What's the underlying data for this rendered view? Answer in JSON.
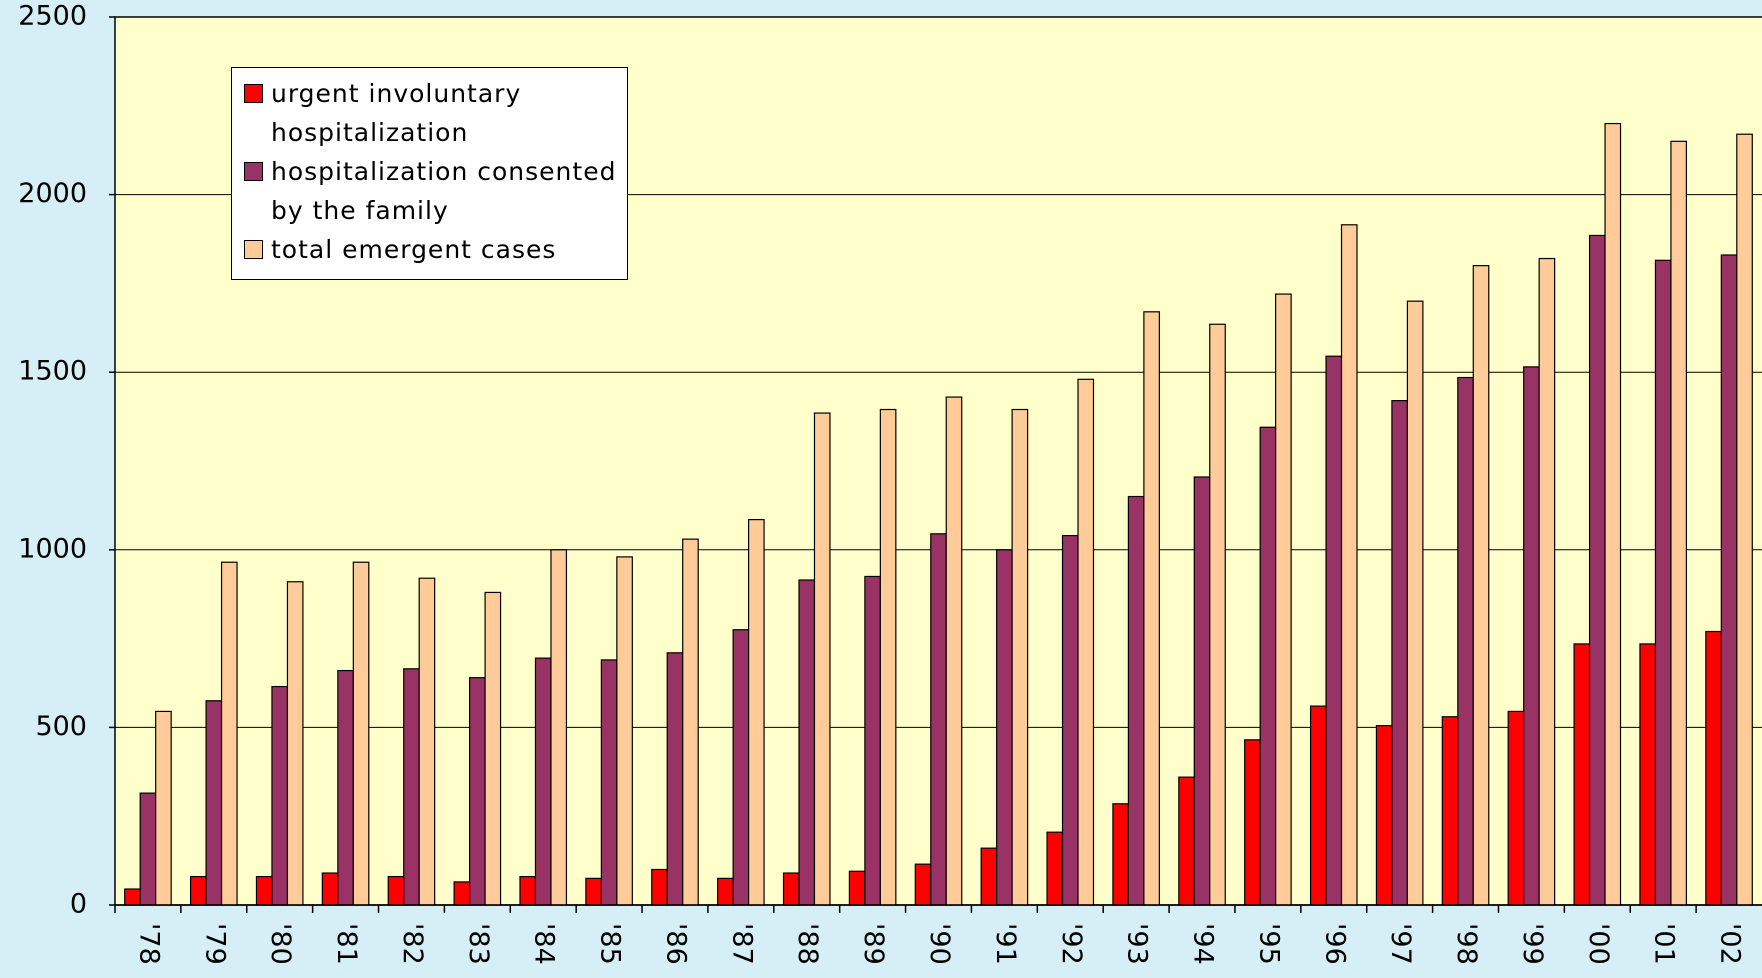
{
  "chart_data": {
    "type": "bar",
    "categories": [
      "'78",
      "'79",
      "'80",
      "'81",
      "'82",
      "'83",
      "'84",
      "'85",
      "'86",
      "'87",
      "'88",
      "'89",
      "'90",
      "'91",
      "'92",
      "'93",
      "'94",
      "'95",
      "'96",
      "'97",
      "'98",
      "'99",
      "'00",
      "'01",
      "'02"
    ],
    "series": [
      {
        "name": "urgent involuntary hospitalization",
        "color": "#ff0000",
        "values": [
          45,
          80,
          80,
          90,
          80,
          65,
          80,
          75,
          100,
          75,
          90,
          95,
          115,
          160,
          205,
          285,
          360,
          465,
          560,
          505,
          530,
          545,
          735,
          735,
          770
        ]
      },
      {
        "name": "hospitalization consented by the family",
        "color": "#993366",
        "values": [
          315,
          575,
          615,
          660,
          665,
          640,
          695,
          690,
          710,
          775,
          915,
          925,
          1045,
          1000,
          1040,
          1150,
          1205,
          1345,
          1545,
          1420,
          1485,
          1515,
          1885,
          1815,
          1830
        ]
      },
      {
        "name": "total emergent cases",
        "color": "#ffcc99",
        "values": [
          545,
          965,
          910,
          965,
          920,
          880,
          1000,
          980,
          1030,
          1085,
          1385,
          1395,
          1430,
          1395,
          1480,
          1670,
          1635,
          1720,
          1915,
          1700,
          1800,
          1820,
          2200,
          2150,
          2170
        ]
      }
    ],
    "ylim": [
      0,
      2500
    ],
    "yticks": [
      0,
      500,
      1000,
      1500,
      2000,
      2500
    ],
    "grid": true,
    "legend": "upper left"
  }
}
